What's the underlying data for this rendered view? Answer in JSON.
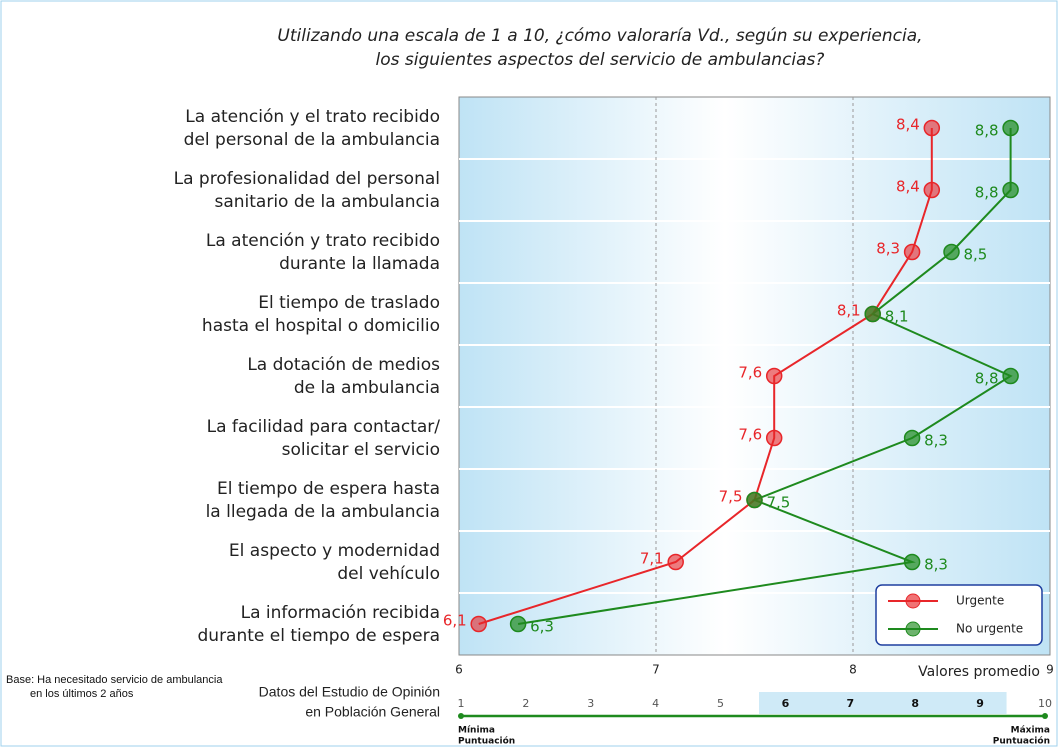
{
  "chart_data": {
    "type": "line",
    "title": [
      "Utilizando una escala de 1 a 10, ¿cómo valoraría Vd., según su experiencia,",
      "los siguientes aspectos del servicio de ambulancias?"
    ],
    "categories": [
      [
        "La atención y el trato recibido",
        "del personal de la ambulancia"
      ],
      [
        "La profesionalidad del personal",
        "sanitario de la ambulancia"
      ],
      [
        "La atención y trato recibido",
        "durante la llamada"
      ],
      [
        "El tiempo de traslado",
        "hasta el hospital o domicilio"
      ],
      [
        "La dotación de medios",
        "de la ambulancia"
      ],
      [
        "La facilidad para contactar/",
        "solicitar el servicio"
      ],
      [
        "El tiempo de espera hasta",
        "la llegada de la ambulancia"
      ],
      [
        "El aspecto y modernidad",
        "del vehículo"
      ],
      [
        "La información recibida",
        "durante el tiempo de espera"
      ]
    ],
    "series": [
      {
        "name": "Urgente",
        "color": "#e8262a",
        "values": [
          8.4,
          8.4,
          8.3,
          8.1,
          7.6,
          7.6,
          7.5,
          7.1,
          6.1
        ],
        "value_labels": [
          "8,4",
          "8,4",
          "8,3",
          "8,1",
          "7,6",
          "7,6",
          "7,5",
          "7,1",
          "6,1"
        ]
      },
      {
        "name": "No urgente",
        "color": "#1e8a1e",
        "values": [
          8.8,
          8.8,
          8.5,
          8.1,
          8.8,
          8.3,
          7.5,
          8.3,
          6.3
        ],
        "value_labels": [
          "8,8",
          "8,8",
          "8,5",
          "8,1",
          "8,8",
          "8,3",
          "7,5",
          "8,3",
          "6,3"
        ]
      }
    ],
    "xlabel": "Valores promedio",
    "xlim": [
      6,
      9
    ],
    "xticks": [
      6,
      7,
      8,
      9
    ],
    "grid": true,
    "legend": "lower right"
  },
  "footer": {
    "base": [
      "Base: Ha necesitado servicio de ambulancia",
      "en los últimos 2 años"
    ],
    "source": [
      "Datos del Estudio de Opinión",
      "en Población General"
    ],
    "scale": {
      "ticks": [
        1,
        2,
        3,
        4,
        5,
        6,
        7,
        8,
        9,
        10
      ],
      "highlight": [
        6,
        9
      ],
      "min_label": [
        "Mínima",
        "Puntuación"
      ],
      "max_label": [
        "Máxima",
        "Puntuación"
      ]
    }
  }
}
